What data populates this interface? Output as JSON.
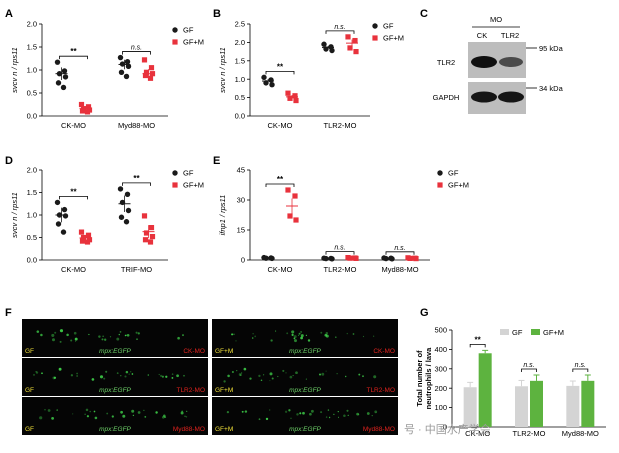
{
  "colors": {
    "gf": "#1a1a1a",
    "gfm": "#e8323c",
    "bar_gf": "#d4d4d4",
    "bar_gfm": "#5db33f",
    "img_bg": "#050505",
    "fluo": "#3fd14a",
    "lab_yellow": "#f3e23a",
    "lab_red": "#e0231e",
    "lab_green": "#6fd36a"
  },
  "legend": {
    "gf": "GF",
    "gfm": "GF+M"
  },
  "panels": {
    "A": {
      "letter": "A",
      "ylabel": "svcv n / rps11",
      "yticks": [
        "0.0",
        "0.5",
        "1.0",
        "1.5",
        "2.0"
      ],
      "categories": [
        "CK-MO",
        "Myd88-MO"
      ],
      "sig": [
        "**",
        "n.s."
      ]
    },
    "B": {
      "letter": "B",
      "ylabel": "svcv n / rps11",
      "yticks": [
        "0.0",
        "0.5",
        "1.0",
        "1.5",
        "2.0",
        "2.5"
      ],
      "categories": [
        "CK-MO",
        "TLR2-MO"
      ],
      "sig": [
        "**",
        "n.s."
      ]
    },
    "C": {
      "letter": "C",
      "header": "MO",
      "lanes": [
        "CK",
        "TLR2"
      ],
      "rows": [
        "TLR2",
        "GAPDH"
      ],
      "markers": [
        "95 kDa",
        "34 kDa"
      ]
    },
    "D": {
      "letter": "D",
      "ylabel": "svcv n / rps11",
      "yticks": [
        "0.0",
        "0.5",
        "1.0",
        "1.5",
        "2.0"
      ],
      "categories": [
        "CK-MO",
        "TRIF-MO"
      ],
      "sig": [
        "**",
        "**"
      ]
    },
    "E": {
      "letter": "E",
      "ylabel": "ifnp1 / rps11",
      "yticks": [
        "0",
        "15",
        "30",
        "45"
      ],
      "categories": [
        "CK-MO",
        "TLR2-MO",
        "Myd88-MO"
      ],
      "sig": [
        "**",
        "n.s.",
        "n.s."
      ]
    },
    "F": {
      "letter": "F",
      "center_label": "mpx:EGFP",
      "rows": [
        {
          "left": {
            "cond": "GF",
            "mo": "CK-MO"
          },
          "right": {
            "cond": "GF+M",
            "mo": "CK-MO"
          }
        },
        {
          "left": {
            "cond": "GF",
            "mo": "TLR2-MO"
          },
          "right": {
            "cond": "GF+M",
            "mo": "TLR2-MO"
          }
        },
        {
          "left": {
            "cond": "GF",
            "mo": "Myd88-MO"
          },
          "right": {
            "cond": "GF+M",
            "mo": "Myd88-MO"
          }
        }
      ]
    },
    "G": {
      "letter": "G",
      "ylabel_1": "Total number of",
      "ylabel_2": "neutrophils / lava",
      "yticks": [
        "0",
        "100",
        "200",
        "300",
        "400",
        "500"
      ],
      "categories": [
        "CK-MO",
        "TLR2-MO",
        "Myd88-MO"
      ],
      "sig": [
        "**",
        "n.s.",
        "n.s."
      ]
    }
  },
  "watermark": "号 · 中国水产学会",
  "chart_data": [
    {
      "panel": "A",
      "type": "scatter",
      "ylabel": "svcv n / rps11",
      "ylim": [
        0,
        2.0
      ],
      "categories": [
        "CK-MO",
        "Myd88-MO"
      ],
      "series": [
        {
          "name": "GF",
          "points": [
            [
              1.17,
              0.98,
              0.92,
              0.85,
              0.72,
              0.62
            ],
            [
              1.27,
              1.18,
              1.13,
              1.08,
              0.95,
              0.86
            ]
          ],
          "mean": [
            0.92,
            1.12
          ]
        },
        {
          "name": "GF+M",
          "points": [
            [
              0.25,
              0.2,
              0.16,
              0.13,
              0.11,
              0.09
            ],
            [
              1.22,
              1.05,
              0.95,
              0.92,
              0.88,
              0.82
            ]
          ],
          "mean": [
            0.16,
            0.92
          ]
        }
      ]
    },
    {
      "panel": "B",
      "type": "scatter",
      "ylabel": "svcv n / rps11",
      "ylim": [
        0,
        2.5
      ],
      "categories": [
        "CK-MO",
        "TLR2-MO"
      ],
      "series": [
        {
          "name": "GF",
          "points": [
            [
              1.05,
              0.98,
              0.9,
              0.85
            ],
            [
              1.95,
              1.88,
              1.82,
              1.78
            ]
          ],
          "mean": [
            0.95,
            1.86
          ]
        },
        {
          "name": "GF+M",
          "points": [
            [
              0.62,
              0.55,
              0.48,
              0.42
            ],
            [
              2.15,
              2.05,
              1.85,
              1.75
            ]
          ],
          "mean": [
            0.52,
            1.98
          ]
        }
      ]
    },
    {
      "panel": "D",
      "type": "scatter",
      "ylabel": "svcv n / rps11",
      "ylim": [
        0,
        2.0
      ],
      "categories": [
        "CK-MO",
        "TRIF-MO"
      ],
      "series": [
        {
          "name": "GF",
          "points": [
            [
              1.28,
              1.12,
              1.0,
              0.98,
              0.8,
              0.62
            ],
            [
              1.58,
              1.46,
              1.28,
              1.1,
              0.95,
              0.85
            ]
          ],
          "mean": [
            1.0,
            1.25
          ]
        },
        {
          "name": "GF+M",
          "points": [
            [
              0.62,
              0.55,
              0.5,
              0.45,
              0.42,
              0.4
            ],
            [
              0.98,
              0.72,
              0.6,
              0.52,
              0.45,
              0.4
            ]
          ],
          "mean": [
            0.49,
            0.63
          ]
        }
      ]
    },
    {
      "panel": "E",
      "type": "scatter",
      "ylabel": "ifnp1 / rps11",
      "ylim": [
        0,
        45
      ],
      "categories": [
        "CK-MO",
        "TLR2-MO",
        "Myd88-MO"
      ],
      "series": [
        {
          "name": "GF",
          "points": [
            [
              1.2,
              1.0,
              0.9,
              0.8
            ],
            [
              0.9,
              0.8,
              0.7,
              0.6
            ],
            [
              1.0,
              0.9,
              0.7,
              0.6
            ]
          ],
          "mean": [
            1.0,
            0.8,
            0.8
          ]
        },
        {
          "name": "GF+M",
          "points": [
            [
              35,
              32,
              22,
              20
            ],
            [
              1.2,
              1.0,
              0.9,
              0.8
            ],
            [
              1.1,
              0.9,
              0.8,
              0.7
            ]
          ],
          "mean": [
            27,
            1.0,
            0.9
          ]
        }
      ]
    },
    {
      "panel": "G",
      "type": "bar",
      "ylabel": "Total number of neutrophils / lava",
      "ylim": [
        0,
        500
      ],
      "categories": [
        "CK-MO",
        "TLR2-MO",
        "Myd88-MO"
      ],
      "series": [
        {
          "name": "GF",
          "values": [
            205,
            210,
            212
          ],
          "error": [
            25,
            30,
            25
          ]
        },
        {
          "name": "GF+M",
          "values": [
            380,
            238,
            238
          ],
          "error": [
            15,
            30,
            30
          ]
        }
      ]
    }
  ]
}
